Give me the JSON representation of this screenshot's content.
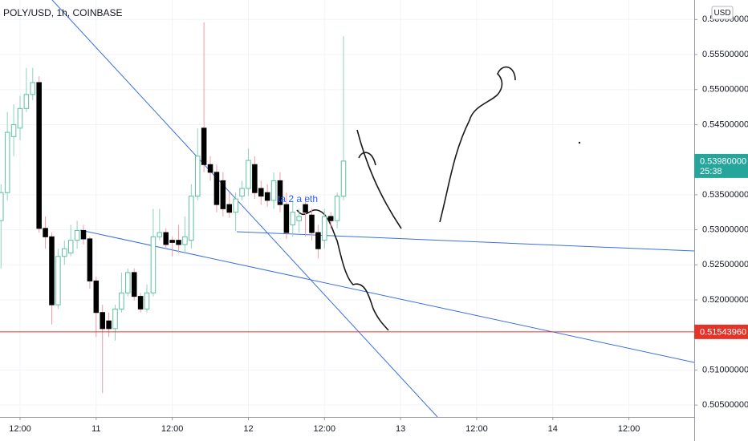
{
  "chart_data": {
    "type": "candlestick",
    "title": "POLY/USD, 1h, COINBASE",
    "currency": "USD",
    "x": [
      9,
      10,
      11,
      12,
      13,
      14,
      15,
      16,
      17,
      18,
      19,
      20,
      21,
      22,
      23,
      24,
      25,
      26,
      27,
      28,
      29,
      30,
      31,
      32,
      33,
      34,
      35,
      36,
      37,
      38,
      39,
      40,
      41,
      42,
      43,
      44,
      45,
      46,
      47,
      48,
      49,
      50,
      51,
      52,
      53,
      54,
      55,
      56,
      57,
      58,
      59,
      60,
      61,
      62,
      63
    ],
    "open": [
      0.5313,
      0.5353,
      0.5433,
      0.5445,
      0.5473,
      0.5493,
      0.551,
      0.5302,
      0.529,
      0.5193,
      0.5262,
      0.5267,
      0.5285,
      0.5299,
      0.5287,
      0.5227,
      0.5182,
      0.517,
      0.5159,
      0.5187,
      0.521,
      0.5239,
      0.5205,
      0.5187,
      0.521,
      0.529,
      0.5296,
      0.5285,
      0.5285,
      0.5279,
      0.5285,
      0.5348,
      0.5445,
      0.5393,
      0.5382,
      0.537,
      0.5336,
      0.5325,
      0.5348,
      0.5359,
      0.5393,
      0.5359,
      0.5353,
      0.5342,
      0.537,
      0.5336,
      0.5307,
      0.5313,
      0.5336,
      0.5321,
      0.5296,
      0.5285,
      0.5319,
      0.5313,
      0.5348
    ],
    "high": [
      0.5365,
      0.5468,
      0.5479,
      0.5491,
      0.5531,
      0.5531,
      0.5519,
      0.5319,
      0.5296,
      0.5273,
      0.5285,
      0.5307,
      0.5313,
      0.5307,
      0.529,
      0.5233,
      0.5193,
      0.5182,
      0.5193,
      0.5239,
      0.5245,
      0.5245,
      0.521,
      0.5222,
      0.533,
      0.533,
      0.5302,
      0.529,
      0.5307,
      0.5319,
      0.5365,
      0.5445,
      0.5596,
      0.5405,
      0.5393,
      0.5382,
      0.5353,
      0.5353,
      0.537,
      0.5416,
      0.5405,
      0.537,
      0.5365,
      0.5382,
      0.5382,
      0.5353,
      0.5342,
      0.533,
      0.5348,
      0.533,
      0.5307,
      0.533,
      0.5325,
      0.5353,
      0.5576
    ],
    "low": [
      0.5245,
      0.5342,
      0.5405,
      0.5428,
      0.5468,
      0.5485,
      0.5296,
      0.5273,
      0.5165,
      0.5187,
      0.525,
      0.5262,
      0.5273,
      0.5279,
      0.5216,
      0.5147,
      0.5067,
      0.5147,
      0.5142,
      0.5182,
      0.5205,
      0.5199,
      0.5182,
      0.5182,
      0.5205,
      0.5285,
      0.5273,
      0.5262,
      0.5267,
      0.5267,
      0.5273,
      0.5342,
      0.5382,
      0.537,
      0.5325,
      0.5319,
      0.5317,
      0.5298,
      0.5342,
      0.5348,
      0.5344,
      0.5336,
      0.5333,
      0.533,
      0.5325,
      0.5287,
      0.529,
      0.5296,
      0.529,
      0.5285,
      0.5259,
      0.5273,
      0.5302,
      0.5302,
      0.5342
    ],
    "close": [
      0.5353,
      0.5439,
      0.545,
      0.5473,
      0.5493,
      0.551,
      0.5302,
      0.529,
      0.5193,
      0.5262,
      0.5273,
      0.5285,
      0.5299,
      0.5287,
      0.5227,
      0.5182,
      0.5159,
      0.5159,
      0.5187,
      0.521,
      0.5239,
      0.5205,
      0.5187,
      0.521,
      0.529,
      0.5296,
      0.5279,
      0.5282,
      0.5279,
      0.529,
      0.5348,
      0.5405,
      0.5393,
      0.5382,
      0.5336,
      0.533,
      0.5325,
      0.5344,
      0.5359,
      0.5399,
      0.5353,
      0.5348,
      0.5342,
      0.537,
      0.5336,
      0.5296,
      0.5325,
      0.5319,
      0.5325,
      0.5296,
      0.5273,
      0.5319,
      0.5313,
      0.5348,
      0.5398
    ],
    "up_color": "#5cbf9f",
    "down_color": "#000000",
    "up_wick_color": "#8fd3bc",
    "down_wick_color": "#f29aa4",
    "xlim": [
      8.84,
      118.3
    ],
    "xticks": [
      {
        "value": 12,
        "label": "12:00"
      },
      {
        "value": 24,
        "label": "11"
      },
      {
        "value": 36,
        "label": "12:00"
      },
      {
        "value": 48,
        "label": "12"
      },
      {
        "value": 60,
        "label": "12:00"
      },
      {
        "value": 72,
        "label": "13"
      },
      {
        "value": 84,
        "label": "12:00"
      },
      {
        "value": 96,
        "label": "14"
      },
      {
        "value": 108,
        "label": "12:00"
      }
    ],
    "ylim": [
      0.5033,
      0.56278
    ],
    "yticks": [
      {
        "value": 0.56,
        "label": "0.56000000"
      },
      {
        "value": 0.555,
        "label": "0.55500000"
      },
      {
        "value": 0.55,
        "label": "0.55000000"
      },
      {
        "value": 0.545,
        "label": "0.54500000"
      },
      {
        "value": 0.535,
        "label": "0.53500000"
      },
      {
        "value": 0.53,
        "label": "0.53000000"
      },
      {
        "value": 0.525,
        "label": "0.52500000"
      },
      {
        "value": 0.52,
        "label": "0.52000000"
      },
      {
        "value": 0.51,
        "label": "0.51000000"
      },
      {
        "value": 0.505,
        "label": "0.50500000"
      }
    ],
    "grid": true,
    "last_price": {
      "value": 0.5398,
      "label": "0.53980000",
      "countdown": "25:38",
      "color": "#26a69a"
    },
    "price_line": {
      "value": 0.5154396,
      "label": "0.51543960",
      "color": "#e5332a"
    },
    "annotation": "ta 2 a eth"
  }
}
